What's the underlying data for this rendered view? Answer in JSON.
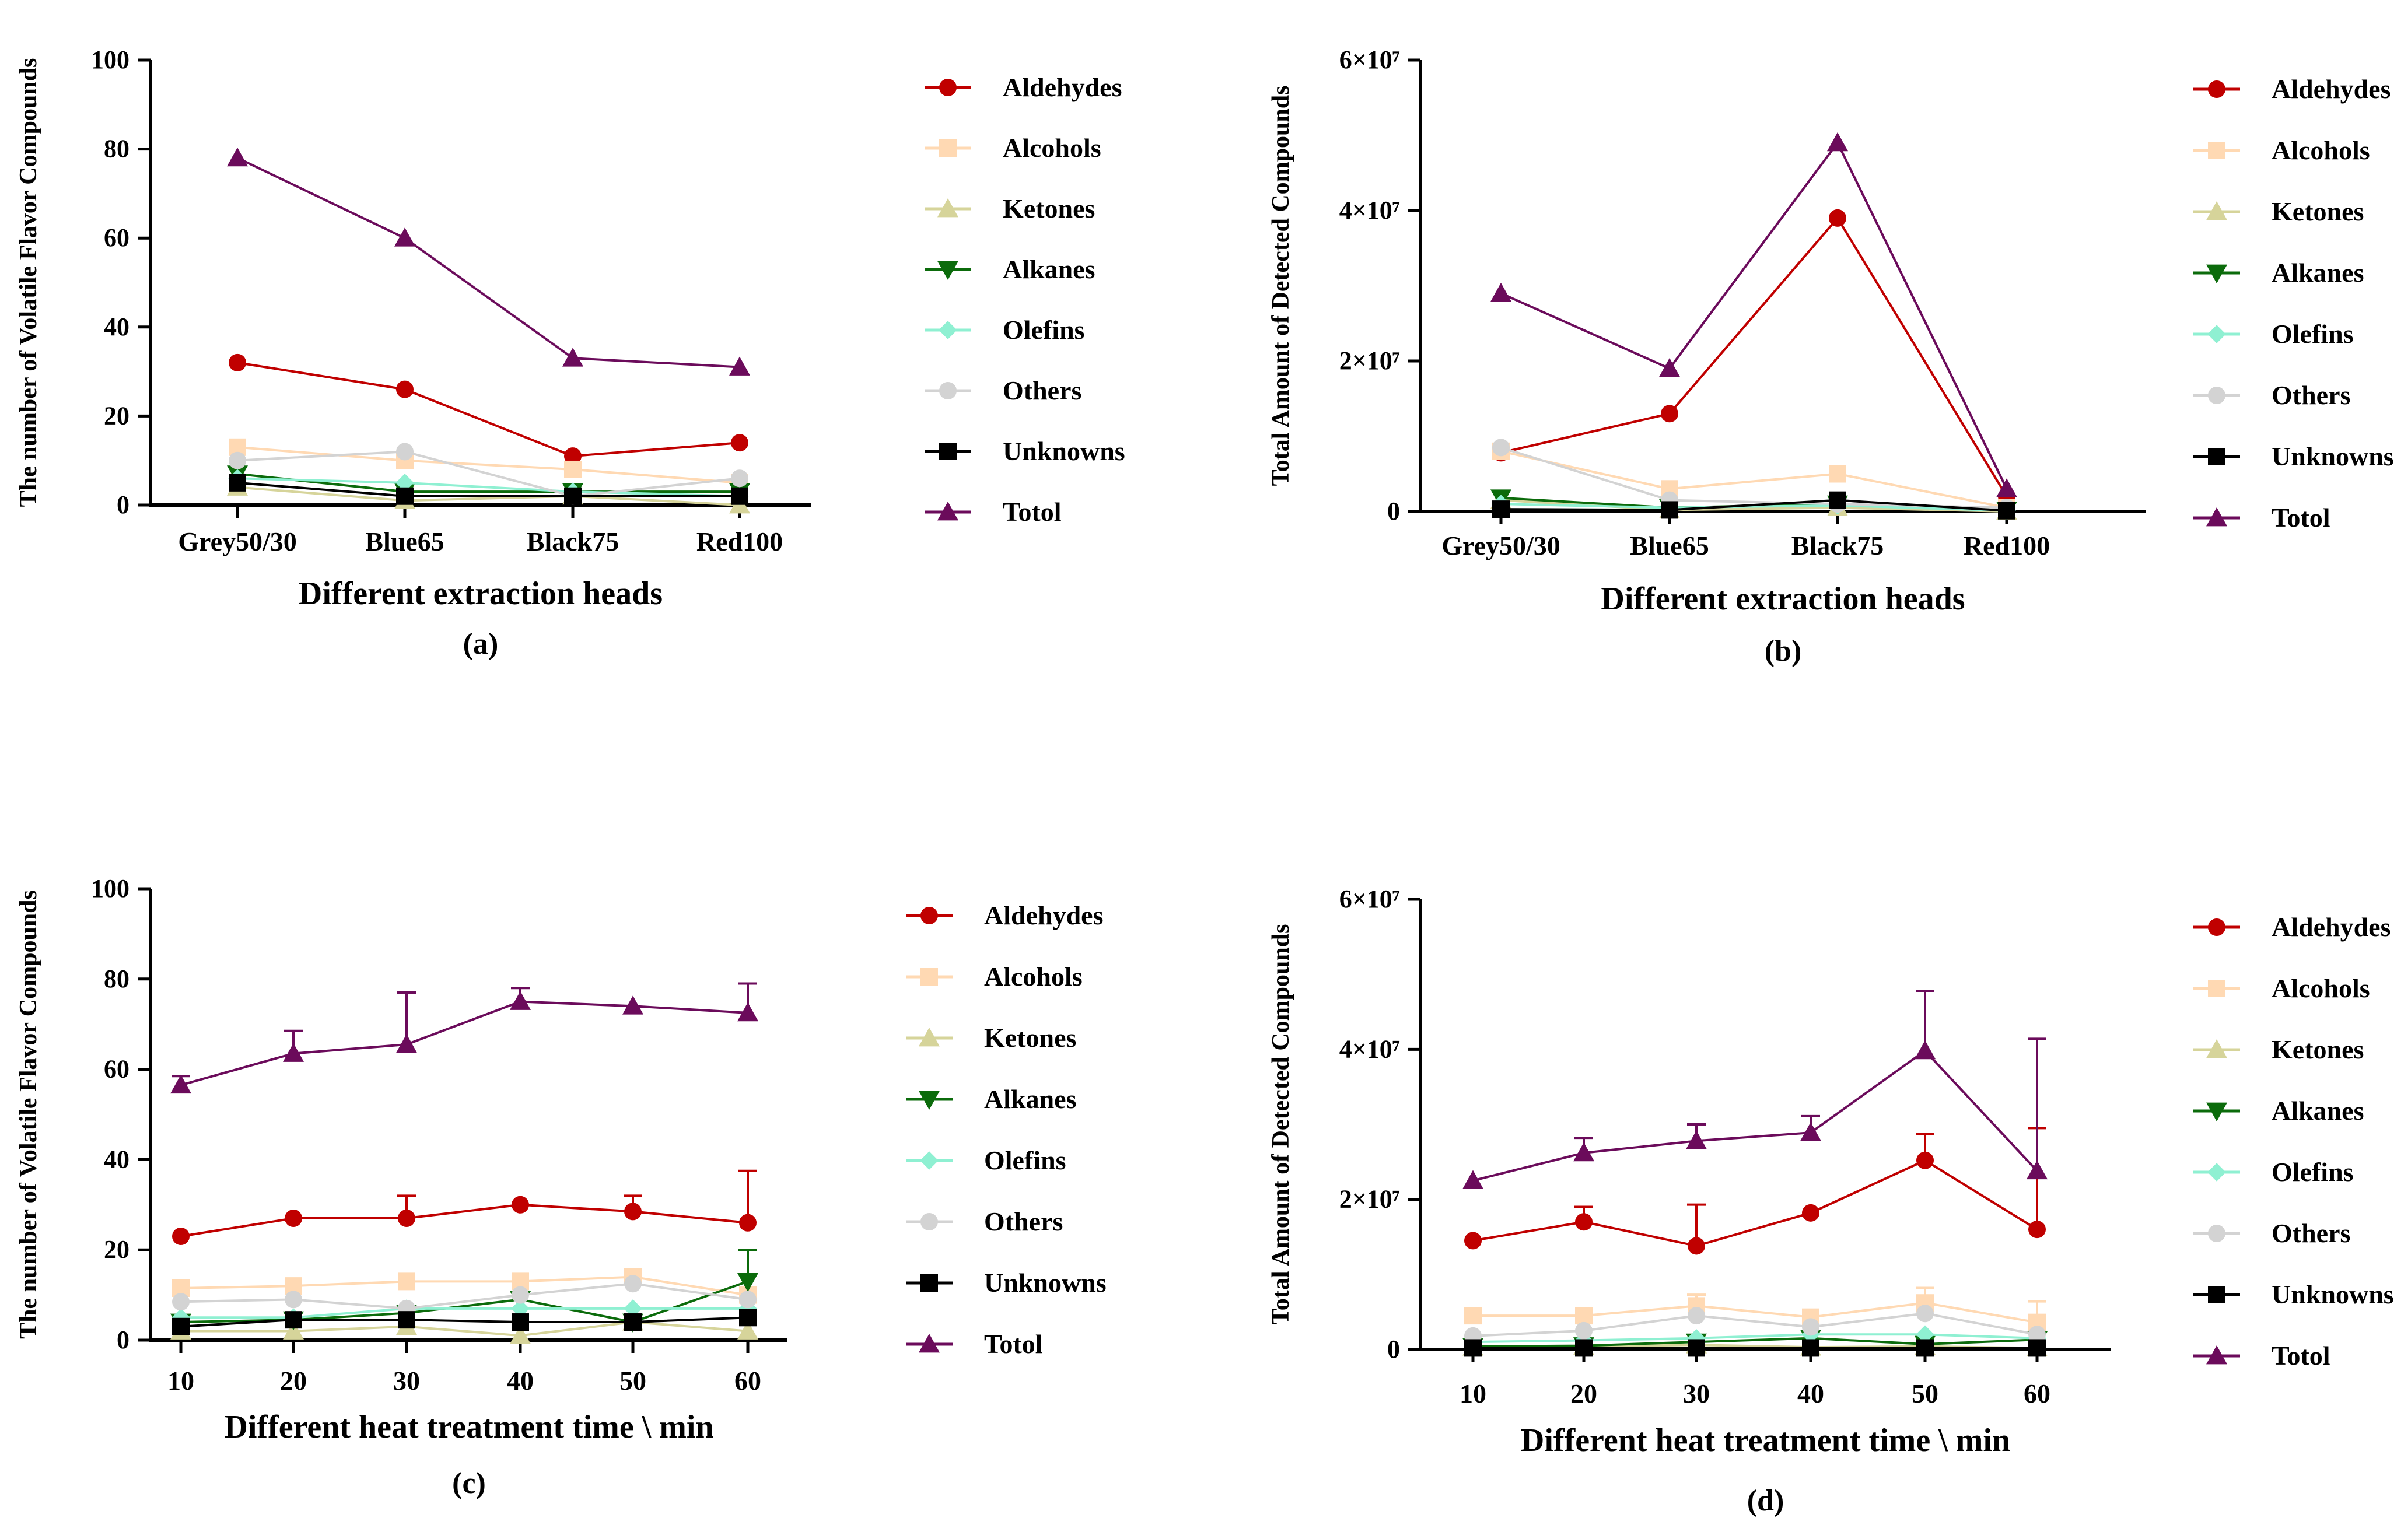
{
  "series_styles": [
    {
      "name": "Aldehydes",
      "color": "#C00000",
      "marker": "circle"
    },
    {
      "name": "Alcohols",
      "color": "#FFD9B3",
      "marker": "square"
    },
    {
      "name": "Ketones",
      "color": "#D6D49A",
      "marker": "triangle-up"
    },
    {
      "name": "Alkanes",
      "color": "#0B6B0B",
      "marker": "triangle-down"
    },
    {
      "name": "Olefins",
      "color": "#8FF0D2",
      "marker": "diamond"
    },
    {
      "name": "Others",
      "color": "#D3D3D3",
      "marker": "circle"
    },
    {
      "name": "Unknowns",
      "color": "#000000",
      "marker": "square"
    },
    {
      "name": "Totol",
      "color": "#6B0B5B",
      "marker": "triangle-up"
    }
  ],
  "chart_data": [
    {
      "id": "a",
      "type": "line",
      "panel_label": "(a)",
      "xlabel": "Different extraction heads",
      "ylabel": "The number of Volatile Flavor Compounds",
      "categories": [
        "Grey50/30",
        "Blue65",
        "Black75",
        "Red100"
      ],
      "ylim": [
        0,
        100
      ],
      "yticks": [
        {
          "value": 0,
          "label": "0"
        },
        {
          "value": 20,
          "label": "20"
        },
        {
          "value": 40,
          "label": "40"
        },
        {
          "value": 60,
          "label": "60"
        },
        {
          "value": 80,
          "label": "80"
        },
        {
          "value": 100,
          "label": "100"
        }
      ],
      "legend": "right",
      "series": [
        {
          "name": "Aldehydes",
          "values": [
            32,
            26,
            11,
            14
          ]
        },
        {
          "name": "Alcohols",
          "values": [
            13,
            10,
            8,
            5
          ]
        },
        {
          "name": "Ketones",
          "values": [
            4,
            1,
            2,
            0
          ]
        },
        {
          "name": "Alkanes",
          "values": [
            7,
            3,
            3,
            3
          ]
        },
        {
          "name": "Olefins",
          "values": [
            6,
            5,
            3,
            2
          ]
        },
        {
          "name": "Others",
          "values": [
            10,
            12,
            2,
            6
          ]
        },
        {
          "name": "Unknowns",
          "values": [
            5,
            2,
            2,
            2
          ]
        },
        {
          "name": "Totol",
          "values": [
            78,
            60,
            33,
            31
          ]
        }
      ]
    },
    {
      "id": "b",
      "type": "line",
      "panel_label": "(b)",
      "xlabel": "Different extraction heads",
      "ylabel": "Total Amount of Detected Compounds",
      "categories": [
        "Grey50/30",
        "Blue65",
        "Black75",
        "Red100"
      ],
      "ylim": [
        0,
        60000000
      ],
      "yticks": [
        {
          "value": 0,
          "label": "0"
        },
        {
          "value": 20000000,
          "label": "2×10⁷"
        },
        {
          "value": 40000000,
          "label": "4×10⁷"
        },
        {
          "value": 60000000,
          "label": "6×10⁷"
        }
      ],
      "legend": "right",
      "series": [
        {
          "name": "Aldehydes",
          "values": [
            7800000,
            13000000,
            39000000,
            2000000
          ]
        },
        {
          "name": "Alcohols",
          "values": [
            8000000,
            3000000,
            5000000,
            500000
          ]
        },
        {
          "name": "Ketones",
          "values": [
            1500000,
            200000,
            500000,
            0
          ]
        },
        {
          "name": "Alkanes",
          "values": [
            1800000,
            500000,
            1000000,
            200000
          ]
        },
        {
          "name": "Olefins",
          "values": [
            1000000,
            500000,
            800000,
            100000
          ]
        },
        {
          "name": "Others",
          "values": [
            8500000,
            1500000,
            1000000,
            500000
          ]
        },
        {
          "name": "Unknowns",
          "values": [
            300000,
            200000,
            1500000,
            100000
          ]
        },
        {
          "name": "Totol",
          "values": [
            29000000,
            19000000,
            49000000,
            3000000
          ]
        }
      ]
    },
    {
      "id": "c",
      "type": "line",
      "panel_label": "(c)",
      "xlabel": "Different heat treatment time \\ min",
      "ylabel": "The number of Volatile Flavor Compounds",
      "categories": [
        "10",
        "20",
        "30",
        "40",
        "50",
        "60"
      ],
      "ylim": [
        0,
        100
      ],
      "yticks": [
        {
          "value": 0,
          "label": "0"
        },
        {
          "value": 20,
          "label": "20"
        },
        {
          "value": 40,
          "label": "40"
        },
        {
          "value": 60,
          "label": "60"
        },
        {
          "value": 80,
          "label": "80"
        },
        {
          "value": 100,
          "label": "100"
        }
      ],
      "legend": "right",
      "series": [
        {
          "name": "Aldehydes",
          "values": [
            23,
            27,
            27,
            30,
            28.5,
            26
          ],
          "errors": [
            0,
            0,
            5,
            0,
            3.5,
            11.5
          ]
        },
        {
          "name": "Alcohols",
          "values": [
            11.5,
            12,
            13,
            13,
            14,
            10
          ]
        },
        {
          "name": "Ketones",
          "values": [
            2,
            2,
            3,
            1,
            4,
            2
          ]
        },
        {
          "name": "Alkanes",
          "values": [
            4,
            4.5,
            6,
            9,
            4,
            13
          ],
          "errors": [
            0,
            0,
            0,
            0,
            0,
            7
          ]
        },
        {
          "name": "Olefins",
          "values": [
            5,
            5,
            7,
            7,
            7,
            7
          ]
        },
        {
          "name": "Others",
          "values": [
            8.5,
            9,
            7,
            10,
            12.5,
            9
          ]
        },
        {
          "name": "Unknowns",
          "values": [
            3,
            4.5,
            4.5,
            4,
            4,
            5
          ]
        },
        {
          "name": "Totol",
          "values": [
            56.5,
            63.5,
            65.5,
            75,
            74,
            72.5
          ],
          "errors": [
            2,
            5,
            11.5,
            3,
            0,
            6.5
          ]
        }
      ]
    },
    {
      "id": "d",
      "type": "line",
      "panel_label": "(d)",
      "xlabel": "Different heat treatment time \\ min",
      "ylabel": "Total Amount of Detected Compounds",
      "categories": [
        "10",
        "20",
        "30",
        "40",
        "50",
        "60"
      ],
      "ylim": [
        0,
        60000000
      ],
      "yticks": [
        {
          "value": 0,
          "label": "0"
        },
        {
          "value": 20000000,
          "label": "2×10⁷"
        },
        {
          "value": 40000000,
          "label": "4×10⁷"
        },
        {
          "value": 60000000,
          "label": "6×10⁷"
        }
      ],
      "legend": "right",
      "series": [
        {
          "name": "Aldehydes",
          "values": [
            14500000,
            17000000,
            13800000,
            18200000,
            25200000,
            16000000
          ],
          "errors": [
            0,
            2000000,
            5500000,
            0,
            3500000,
            13500000
          ]
        },
        {
          "name": "Alcohols",
          "values": [
            4500000,
            4500000,
            5800000,
            4300000,
            6200000,
            3600000
          ],
          "errors": [
            0,
            0,
            1500000,
            0,
            2000000,
            2800000
          ]
        },
        {
          "name": "Ketones",
          "values": [
            300000,
            400000,
            600000,
            300000,
            400000,
            200000
          ]
        },
        {
          "name": "Alkanes",
          "values": [
            400000,
            500000,
            1000000,
            1500000,
            700000,
            1300000
          ]
        },
        {
          "name": "Olefins",
          "values": [
            1000000,
            1200000,
            1500000,
            2000000,
            2000000,
            1500000
          ]
        },
        {
          "name": "Others",
          "values": [
            1800000,
            2500000,
            4500000,
            3000000,
            4800000,
            2000000
          ]
        },
        {
          "name": "Unknowns",
          "values": [
            200000,
            200000,
            200000,
            200000,
            200000,
            200000
          ]
        },
        {
          "name": "Totol",
          "values": [
            22500000,
            26200000,
            27800000,
            28900000,
            39800000,
            23800000
          ],
          "errors": [
            0,
            2000000,
            2200000,
            2200000,
            8000000,
            17600000
          ]
        }
      ]
    }
  ]
}
